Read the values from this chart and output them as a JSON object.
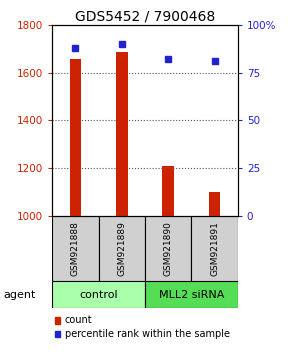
{
  "title": "GDS5452 / 7900468",
  "samples": [
    "GSM921888",
    "GSM921889",
    "GSM921890",
    "GSM921891"
  ],
  "bar_values": [
    1655,
    1685,
    1210,
    1100
  ],
  "percentile_values": [
    88,
    90,
    82,
    81
  ],
  "ylim_left": [
    1000,
    1800
  ],
  "ylim_right": [
    0,
    100
  ],
  "yticks_left": [
    1000,
    1200,
    1400,
    1600,
    1800
  ],
  "yticks_right": [
    0,
    25,
    50,
    75,
    100
  ],
  "bar_color": "#cc2200",
  "percentile_color": "#2222cc",
  "groups": [
    {
      "label": "control",
      "indices": [
        0,
        1
      ],
      "color": "#aaffaa"
    },
    {
      "label": "MLL2 siRNA",
      "indices": [
        2,
        3
      ],
      "color": "#55dd55"
    }
  ],
  "agent_label": "agent",
  "legend_items": [
    {
      "label": "count",
      "color": "#cc2200"
    },
    {
      "label": "percentile rank within the sample",
      "color": "#2222cc"
    }
  ],
  "bar_width": 0.25,
  "title_fontsize": 10,
  "tick_fontsize": 7.5,
  "sample_fontsize": 6.5,
  "group_fontsize": 8,
  "legend_fontsize": 7,
  "sample_box_color": "#d0d0d0",
  "fig_bg": "#ffffff"
}
